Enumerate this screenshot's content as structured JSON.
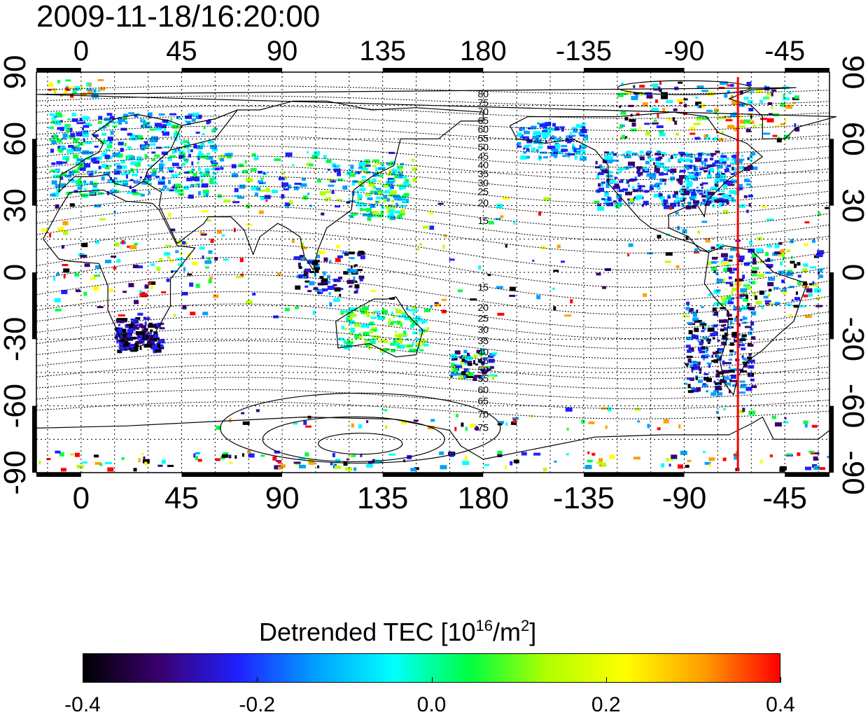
{
  "timestamp": "2009-11-18/16:20:00",
  "map": {
    "projection": "cylindrical (longitude shifted)",
    "lon_range": [
      -20,
      335
    ],
    "lat_range": [
      -90,
      90
    ],
    "lon_tick_labels": [
      "0",
      "45",
      "90",
      "135",
      "180",
      "-135",
      "-90",
      "-45"
    ],
    "lat_tick_labels": [
      "90",
      "60",
      "30",
      "0",
      "-30",
      "-60",
      "-90"
    ],
    "marker_longitude": -66,
    "marker_color": "#ff0000",
    "north_contour_labels": [
      "80",
      "75",
      "70",
      "65",
      "60",
      "55",
      "50",
      "45",
      "40",
      "35",
      "30",
      "25",
      "20",
      "15"
    ],
    "south_contour_labels": [
      "15",
      "20",
      "25",
      "30",
      "35",
      "40",
      "45",
      "50",
      "55",
      "60",
      "65",
      "70",
      "75"
    ]
  },
  "colorbar": {
    "title_main": "Detrended TEC  [10",
    "title_exp1": "16",
    "title_mid": "/m",
    "title_exp2": "2",
    "title_end": "]",
    "ticks": [
      "-0.4",
      "-0.2",
      "0.0",
      "0.2",
      "0.4"
    ],
    "colors": [
      "#000000",
      "#3a0070",
      "#2020ff",
      "#00a0ff",
      "#00ffff",
      "#00ff40",
      "#b0ff00",
      "#ffff00",
      "#ffa000",
      "#ff0000"
    ]
  }
}
